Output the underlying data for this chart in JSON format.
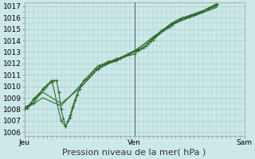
{
  "title": "Pression niveau de la mer( hPa )",
  "bg_color": "#cce8e8",
  "grid_color": "#aacccc",
  "line_color": "#2d6a2d",
  "marker_color": "#2d6a2d",
  "ylim": [
    1006,
    1017
  ],
  "yticks": [
    1006,
    1007,
    1008,
    1009,
    1010,
    1011,
    1012,
    1013,
    1014,
    1015,
    1016,
    1017
  ],
  "xlim": [
    0,
    48
  ],
  "xtick_positions": [
    0,
    24,
    48
  ],
  "xtick_labels": [
    "Jeu",
    "Ven",
    "Sam"
  ],
  "vline_positions": [
    24
  ],
  "series1": [
    [
      0,
      1008.0
    ],
    [
      0.5,
      1008.1
    ],
    [
      1,
      1008.3
    ],
    [
      1.5,
      1008.6
    ],
    [
      2,
      1008.9
    ],
    [
      2.5,
      1009.1
    ],
    [
      3,
      1009.3
    ],
    [
      3.5,
      1009.5
    ],
    [
      4,
      1009.7
    ],
    [
      4.5,
      1009.9
    ],
    [
      5,
      1010.1
    ],
    [
      5.5,
      1010.3
    ],
    [
      6,
      1010.4
    ],
    [
      6.5,
      1010.5
    ],
    [
      7,
      1010.5
    ],
    [
      7.5,
      1009.5
    ],
    [
      8,
      1008.0
    ],
    [
      8.5,
      1007.2
    ],
    [
      9,
      1006.5
    ],
    [
      9.5,
      1007.0
    ],
    [
      10,
      1007.5
    ],
    [
      10.5,
      1008.2
    ],
    [
      11,
      1008.8
    ],
    [
      11.5,
      1009.3
    ],
    [
      12,
      1009.8
    ],
    [
      12.5,
      1010.2
    ],
    [
      13,
      1010.5
    ],
    [
      13.5,
      1010.7
    ],
    [
      14,
      1010.9
    ],
    [
      14.5,
      1011.1
    ],
    [
      15,
      1011.3
    ],
    [
      15.5,
      1011.5
    ],
    [
      16,
      1011.6
    ],
    [
      16.5,
      1011.8
    ],
    [
      17,
      1011.9
    ],
    [
      17.5,
      1012.0
    ],
    [
      18,
      1012.1
    ],
    [
      18.5,
      1012.2
    ],
    [
      19,
      1012.2
    ],
    [
      19.5,
      1012.3
    ],
    [
      20,
      1012.3
    ],
    [
      20.5,
      1012.4
    ],
    [
      21,
      1012.5
    ],
    [
      21.5,
      1012.6
    ],
    [
      22,
      1012.7
    ],
    [
      22.5,
      1012.8
    ],
    [
      23,
      1012.9
    ],
    [
      23.5,
      1013.0
    ],
    [
      24,
      1013.1
    ],
    [
      24.5,
      1013.2
    ],
    [
      25,
      1013.2
    ],
    [
      25.5,
      1013.3
    ],
    [
      26,
      1013.4
    ],
    [
      26.5,
      1013.5
    ],
    [
      27,
      1013.7
    ],
    [
      27.5,
      1013.9
    ],
    [
      28,
      1014.1
    ],
    [
      28.5,
      1014.3
    ],
    [
      29,
      1014.5
    ],
    [
      29.5,
      1014.7
    ],
    [
      30,
      1014.9
    ],
    [
      30.5,
      1015.0
    ],
    [
      31,
      1015.1
    ],
    [
      31.5,
      1015.2
    ],
    [
      32,
      1015.3
    ],
    [
      32.5,
      1015.5
    ],
    [
      33,
      1015.7
    ],
    [
      33.5,
      1015.8
    ],
    [
      34,
      1015.9
    ],
    [
      34.5,
      1016.0
    ],
    [
      35,
      1016.0
    ],
    [
      35.5,
      1016.1
    ],
    [
      36,
      1016.1
    ],
    [
      36.5,
      1016.2
    ],
    [
      37,
      1016.2
    ],
    [
      37.5,
      1016.3
    ],
    [
      38,
      1016.4
    ],
    [
      38.5,
      1016.5
    ],
    [
      39,
      1016.6
    ],
    [
      39.5,
      1016.7
    ],
    [
      40,
      1016.8
    ],
    [
      40.5,
      1016.9
    ],
    [
      41,
      1017.0
    ],
    [
      41.5,
      1017.1
    ],
    [
      42,
      1017.2
    ]
  ],
  "series2": [
    [
      0,
      1008.0
    ],
    [
      4,
      1009.5
    ],
    [
      8,
      1008.5
    ],
    [
      12,
      1009.8
    ],
    [
      16,
      1011.5
    ],
    [
      20,
      1012.3
    ],
    [
      24,
      1013.1
    ],
    [
      28,
      1014.2
    ],
    [
      32,
      1015.5
    ],
    [
      36,
      1016.2
    ],
    [
      42,
      1017.0
    ]
  ],
  "series3": [
    [
      0,
      1008.2
    ],
    [
      2,
      1008.5
    ],
    [
      4,
      1009.8
    ],
    [
      6,
      1010.5
    ],
    [
      8,
      1007.0
    ],
    [
      9,
      1006.5
    ],
    [
      10,
      1007.3
    ],
    [
      12,
      1009.8
    ],
    [
      16,
      1011.5
    ],
    [
      20,
      1012.4
    ],
    [
      24,
      1012.8
    ],
    [
      28,
      1014.1
    ],
    [
      32,
      1015.3
    ],
    [
      36,
      1016.1
    ],
    [
      42,
      1017.1
    ]
  ],
  "series4": [
    [
      0,
      1008.0
    ],
    [
      4,
      1009.0
    ],
    [
      8,
      1008.3
    ],
    [
      12,
      1010.0
    ],
    [
      16,
      1011.8
    ],
    [
      20,
      1012.2
    ],
    [
      24,
      1013.0
    ],
    [
      28,
      1014.3
    ],
    [
      32,
      1015.4
    ],
    [
      36,
      1016.0
    ],
    [
      42,
      1016.9
    ]
  ],
  "title_fontsize": 8,
  "tick_fontsize": 6.5
}
